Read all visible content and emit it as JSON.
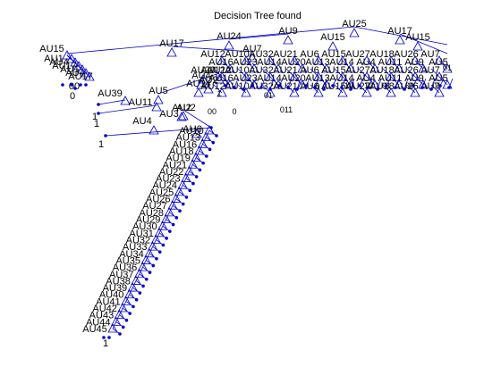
{
  "title": "Decision Tree found",
  "colors": {
    "tree": "#0000cc",
    "text": "#000000",
    "background": "#ffffff"
  },
  "labels": {
    "upper": [
      "AU25",
      "AU9",
      "AU17",
      "AU24",
      "AU15",
      "AU15",
      "AU7",
      "AU20",
      "AU17",
      "AU14",
      "AU4",
      "AU5",
      "AU12",
      "AU2",
      "AU2"
    ],
    "left": [
      "AU15",
      "AU1",
      "AU4",
      "AU17",
      "AU39",
      "AU11",
      "AU5",
      "AU12",
      "AU4",
      "AU3",
      "AU2",
      "AU6"
    ],
    "chain": [
      "AU10",
      "AU13",
      "AU16",
      "AU18",
      "AU19",
      "AU21",
      "AU22",
      "AU23",
      "AU24",
      "AU25",
      "AU26",
      "AU27",
      "AU28",
      "AU29",
      "AU30",
      "AU31",
      "AU32",
      "AU33",
      "AU34",
      "AU35",
      "AU36",
      "AU37",
      "AU38",
      "AU39",
      "AU40",
      "AU41",
      "AU42",
      "AU43",
      "AU44",
      "AU45"
    ],
    "cluster": [
      "AU12",
      "AU10",
      "AU32",
      "AU21",
      "AU6",
      "AU15",
      "AU27",
      "AU18",
      "AU26",
      "AU7",
      "AU16",
      "AU23",
      "AU14",
      "AU20",
      "AU13",
      "AU14",
      "AU4",
      "AU11",
      "AU9",
      "AU5"
    ],
    "leaf": [
      "1",
      "0",
      "10",
      "01",
      "00",
      "011",
      "01",
      "0",
      "1"
    ]
  }
}
